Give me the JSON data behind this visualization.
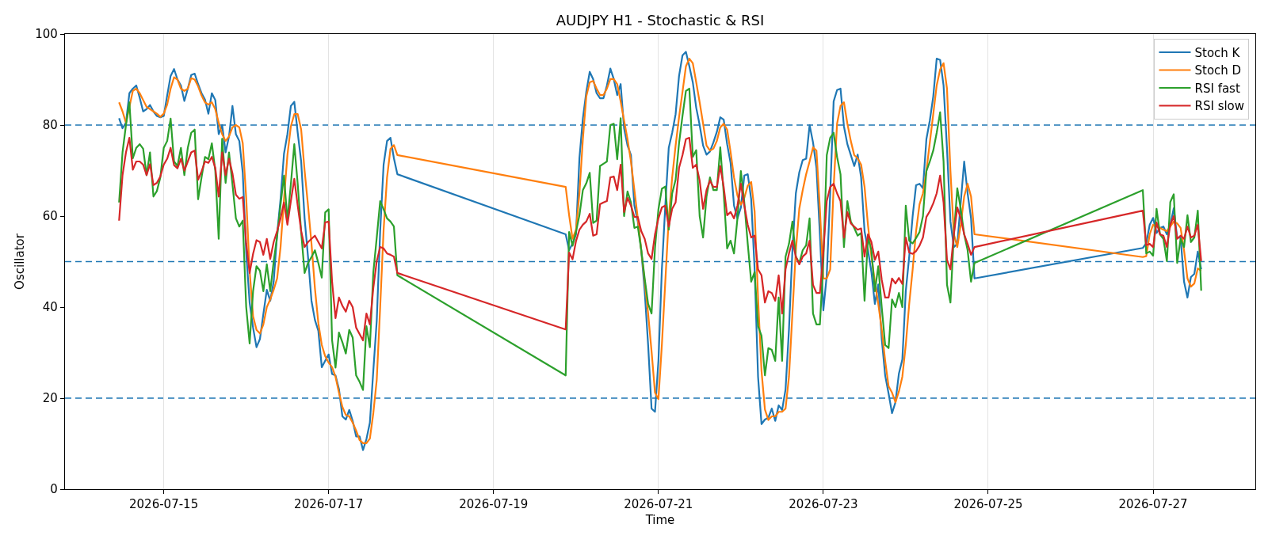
{
  "chart_data": {
    "type": "line",
    "title": "AUDJPY H1 - Stochastic & RSI",
    "xlabel": "Time",
    "ylabel": "Oscillator",
    "x": [
      "2026-07-14T11:00",
      "2026-07-14T12:00",
      "2026-07-14T13:00",
      "2026-07-14T14:00",
      "2026-07-14T15:00",
      "2026-07-14T16:00",
      "2026-07-14T17:00",
      "2026-07-14T18:00",
      "2026-07-14T19:00",
      "2026-07-14T20:00",
      "2026-07-14T21:00",
      "2026-07-14T22:00",
      "2026-07-14T23:00",
      "2026-07-15T00:00",
      "2026-07-15T01:00",
      "2026-07-15T02:00",
      "2026-07-15T03:00",
      "2026-07-15T04:00",
      "2026-07-15T05:00",
      "2026-07-15T06:00",
      "2026-07-15T07:00",
      "2026-07-15T08:00",
      "2026-07-15T09:00",
      "2026-07-15T10:00",
      "2026-07-15T11:00",
      "2026-07-15T12:00",
      "2026-07-15T13:00",
      "2026-07-15T14:00",
      "2026-07-15T15:00",
      "2026-07-15T16:00",
      "2026-07-15T17:00",
      "2026-07-15T18:00",
      "2026-07-15T19:00",
      "2026-07-15T20:00",
      "2026-07-15T21:00",
      "2026-07-15T22:00",
      "2026-07-15T23:00",
      "2026-07-16T00:00",
      "2026-07-16T01:00",
      "2026-07-16T02:00",
      "2026-07-16T03:00",
      "2026-07-16T04:00",
      "2026-07-16T05:00",
      "2026-07-16T06:00",
      "2026-07-16T07:00",
      "2026-07-16T08:00",
      "2026-07-16T09:00",
      "2026-07-16T10:00",
      "2026-07-16T11:00",
      "2026-07-16T12:00",
      "2026-07-16T13:00",
      "2026-07-16T14:00",
      "2026-07-16T15:00",
      "2026-07-16T16:00",
      "2026-07-16T17:00",
      "2026-07-16T18:00",
      "2026-07-16T19:00",
      "2026-07-16T20:00",
      "2026-07-16T21:00",
      "2026-07-16T22:00",
      "2026-07-16T23:00",
      "2026-07-17T00:00",
      "2026-07-17T01:00",
      "2026-07-17T02:00",
      "2026-07-17T03:00",
      "2026-07-17T04:00",
      "2026-07-17T05:00",
      "2026-07-17T06:00",
      "2026-07-17T07:00",
      "2026-07-17T08:00",
      "2026-07-17T09:00",
      "2026-07-17T10:00",
      "2026-07-17T11:00",
      "2026-07-17T12:00",
      "2026-07-17T13:00",
      "2026-07-17T14:00",
      "2026-07-17T15:00",
      "2026-07-17T16:00",
      "2026-07-17T17:00",
      "2026-07-17T18:00",
      "2026-07-17T19:00",
      "2026-07-17T20:00",
      "2026-07-19T21:00",
      "2026-07-19T22:00",
      "2026-07-19T23:00",
      "2026-07-20T00:00",
      "2026-07-20T01:00",
      "2026-07-20T02:00",
      "2026-07-20T03:00",
      "2026-07-20T04:00",
      "2026-07-20T05:00",
      "2026-07-20T06:00",
      "2026-07-20T07:00",
      "2026-07-20T08:00",
      "2026-07-20T09:00",
      "2026-07-20T10:00",
      "2026-07-20T11:00",
      "2026-07-20T12:00",
      "2026-07-20T13:00",
      "2026-07-20T14:00",
      "2026-07-20T15:00",
      "2026-07-20T16:00",
      "2026-07-20T17:00",
      "2026-07-20T18:00",
      "2026-07-20T19:00",
      "2026-07-20T20:00",
      "2026-07-20T21:00",
      "2026-07-20T22:00",
      "2026-07-20T23:00",
      "2026-07-21T00:00",
      "2026-07-21T01:00",
      "2026-07-21T02:00",
      "2026-07-21T03:00",
      "2026-07-21T04:00",
      "2026-07-21T05:00",
      "2026-07-21T06:00",
      "2026-07-21T07:00",
      "2026-07-21T08:00",
      "2026-07-21T09:00",
      "2026-07-21T10:00",
      "2026-07-21T11:00",
      "2026-07-21T12:00",
      "2026-07-21T13:00",
      "2026-07-21T14:00",
      "2026-07-21T15:00",
      "2026-07-21T16:00",
      "2026-07-21T17:00",
      "2026-07-21T18:00",
      "2026-07-21T19:00",
      "2026-07-21T20:00",
      "2026-07-21T21:00",
      "2026-07-21T22:00",
      "2026-07-21T23:00",
      "2026-07-22T00:00",
      "2026-07-22T01:00",
      "2026-07-22T02:00",
      "2026-07-22T03:00",
      "2026-07-22T04:00",
      "2026-07-22T05:00",
      "2026-07-22T06:00",
      "2026-07-22T07:00",
      "2026-07-22T08:00",
      "2026-07-22T09:00",
      "2026-07-22T10:00",
      "2026-07-22T11:00",
      "2026-07-22T12:00",
      "2026-07-22T13:00",
      "2026-07-22T14:00",
      "2026-07-22T15:00",
      "2026-07-22T16:00",
      "2026-07-22T17:00",
      "2026-07-22T18:00",
      "2026-07-22T19:00",
      "2026-07-22T20:00",
      "2026-07-22T21:00",
      "2026-07-22T22:00",
      "2026-07-22T23:00",
      "2026-07-23T00:00",
      "2026-07-23T01:00",
      "2026-07-23T02:00",
      "2026-07-23T03:00",
      "2026-07-23T04:00",
      "2026-07-23T05:00",
      "2026-07-23T06:00",
      "2026-07-23T07:00",
      "2026-07-23T08:00",
      "2026-07-23T09:00",
      "2026-07-23T10:00",
      "2026-07-23T11:00",
      "2026-07-23T12:00",
      "2026-07-23T13:00",
      "2026-07-23T14:00",
      "2026-07-23T15:00",
      "2026-07-23T16:00",
      "2026-07-23T17:00",
      "2026-07-23T18:00",
      "2026-07-23T19:00",
      "2026-07-23T20:00",
      "2026-07-23T21:00",
      "2026-07-23T22:00",
      "2026-07-23T23:00",
      "2026-07-24T00:00",
      "2026-07-24T01:00",
      "2026-07-24T02:00",
      "2026-07-24T03:00",
      "2026-07-24T04:00",
      "2026-07-24T05:00",
      "2026-07-24T06:00",
      "2026-07-24T07:00",
      "2026-07-24T08:00",
      "2026-07-24T09:00",
      "2026-07-24T10:00",
      "2026-07-24T11:00",
      "2026-07-24T12:00",
      "2026-07-24T13:00",
      "2026-07-24T14:00",
      "2026-07-24T15:00",
      "2026-07-24T16:00",
      "2026-07-24T17:00",
      "2026-07-24T18:00",
      "2026-07-24T19:00",
      "2026-07-24T20:00",
      "2026-07-26T21:00",
      "2026-07-26T22:00",
      "2026-07-26T23:00",
      "2026-07-27T00:00",
      "2026-07-27T01:00",
      "2026-07-27T02:00",
      "2026-07-27T03:00",
      "2026-07-27T04:00",
      "2026-07-27T05:00",
      "2026-07-27T06:00",
      "2026-07-27T07:00",
      "2026-07-27T08:00",
      "2026-07-27T09:00",
      "2026-07-27T10:00",
      "2026-07-27T11:00",
      "2026-07-27T12:00",
      "2026-07-27T13:00",
      "2026-07-27T14:00"
    ],
    "series": [
      {
        "name": "Stoch K",
        "color": "#1f77b4",
        "values": [
          81.5,
          79.3,
          80.5,
          87,
          88,
          88.7,
          86,
          83,
          83.5,
          84.4,
          83,
          82,
          81.7,
          82,
          86.5,
          90.8,
          92.3,
          90,
          88.7,
          85.3,
          88,
          91,
          91.3,
          89,
          87,
          85.6,
          82.5,
          87,
          85.5,
          78,
          80,
          74,
          77.5,
          84.2,
          78,
          76.5,
          69.5,
          52,
          41,
          35.5,
          31.2,
          33,
          38.5,
          43.8,
          41.4,
          45.6,
          56,
          63.7,
          73.7,
          78,
          84.2,
          85.1,
          78.3,
          72,
          59.5,
          51,
          41.4,
          37.2,
          34.8,
          26.8,
          28.2,
          29.6,
          25.3,
          25,
          22,
          16,
          15.3,
          17.4,
          15,
          11.6,
          11.6,
          8.6,
          11,
          14.6,
          26,
          37,
          56.7,
          71.3,
          76.5,
          77.2,
          72.7,
          69.2,
          56,
          52.5,
          54,
          56,
          72.7,
          81.4,
          87.3,
          91.7,
          90.1,
          87,
          85.9,
          85.9,
          88.7,
          92.4,
          90.1,
          86.6,
          89,
          79.3,
          75.5,
          73.4,
          62.3,
          58.8,
          52.5,
          43.5,
          31.7,
          17.7,
          17,
          28.2,
          48.3,
          62.3,
          75,
          78.3,
          82.4,
          90.8,
          95.3,
          96.1,
          92.9,
          89.4,
          83.8,
          80,
          75.5,
          73.5,
          74.2,
          76.2,
          78.5,
          81.7,
          81.2,
          75.8,
          71.7,
          62.3,
          59.5,
          61.9,
          68.9,
          69.2,
          63.7,
          48.3,
          24.7,
          14.3,
          15.3,
          15.7,
          17.7,
          15,
          18.4,
          17.4,
          21.9,
          35.1,
          52.5,
          65,
          69.6,
          72.3,
          72.6,
          80,
          76.2,
          70.6,
          56,
          39.3,
          47,
          65,
          85.2,
          87.7,
          88,
          79.7,
          75.8,
          73.4,
          71,
          73.5,
          68.5,
          56.7,
          52.5,
          47.7,
          40.7,
          45,
          33,
          25,
          21,
          16.7,
          19.1,
          25.4,
          28.5,
          43.5,
          51.1,
          60,
          66.8,
          67.1,
          66.1,
          76.9,
          81,
          86.3,
          94.6,
          94.3,
          88.7,
          74.8,
          58.8,
          53.2,
          53.9,
          63,
          72,
          65,
          59.5,
          46.3,
          53,
          54,
          58.1,
          59.6,
          56.3,
          57.4,
          57.7,
          56,
          58.1,
          61.7,
          55.3,
          55.3,
          45.6,
          42.1,
          46.6,
          47.3,
          52.2,
          48.3
        ]
      },
      {
        "name": "Stoch D",
        "color": "#ff7f0e",
        "values": [
          85,
          83,
          80.5,
          84,
          87.5,
          88,
          87,
          85.5,
          84,
          83.5,
          83,
          82.5,
          81.8,
          82.5,
          84.5,
          88,
          90.5,
          90,
          88,
          87.5,
          88,
          90.3,
          90,
          88.5,
          86.5,
          85,
          84.5,
          85,
          83.5,
          80.5,
          78,
          76.5,
          77.5,
          79.5,
          80,
          79.5,
          76,
          64,
          48,
          38,
          35,
          34.2,
          36.2,
          40,
          41.7,
          43.8,
          46.3,
          53.2,
          63.7,
          73.4,
          79.7,
          82.4,
          82.4,
          79,
          70,
          62.3,
          54,
          44.2,
          36.5,
          31.7,
          29.2,
          27.8,
          26.8,
          24.7,
          21.2,
          18.1,
          16.3,
          16,
          14.6,
          12.9,
          10.8,
          10.1,
          10.1,
          11.1,
          16.7,
          24,
          40,
          57,
          68.5,
          74.8,
          75.6,
          73.4,
          66.4,
          60.2,
          55,
          57,
          65,
          76.9,
          86.3,
          89.4,
          89.7,
          88,
          86.6,
          86.6,
          88,
          90.1,
          90.1,
          89,
          85.2,
          81,
          76.9,
          72,
          65.7,
          59.5,
          52.5,
          45.6,
          38.6,
          30.3,
          21.2,
          19.8,
          31.7,
          45.6,
          59.5,
          68.5,
          75.5,
          81.7,
          87.3,
          92.9,
          94.6,
          93.6,
          89.4,
          85,
          80.3,
          75.5,
          74.4,
          74.8,
          76.5,
          79.5,
          80.3,
          79,
          74.1,
          68.5,
          64.5,
          62.5,
          64,
          66.7,
          67.5,
          61,
          42,
          26,
          17.5,
          15.2,
          16,
          16,
          17,
          17,
          17.7,
          24.7,
          38.6,
          52.5,
          61.6,
          65.7,
          69.2,
          72,
          75.1,
          74.4,
          61.6,
          46.3,
          46.3,
          48.3,
          66.4,
          80.3,
          84.2,
          85,
          80.3,
          76.5,
          73.4,
          72.7,
          71.3,
          66.4,
          58,
          51.1,
          45.6,
          40.7,
          35.1,
          28.2,
          22.6,
          21.2,
          19.1,
          21.5,
          24.7,
          31.7,
          40.7,
          48.3,
          56.7,
          62.6,
          65,
          69.9,
          76.2,
          82.4,
          88.7,
          92.2,
          93.6,
          88,
          69.9,
          56,
          53.2,
          58.1,
          64.3,
          67.1,
          64.3,
          56,
          51,
          51.2,
          56,
          58.1,
          57.7,
          57.4,
          57,
          56.7,
          57.7,
          58.8,
          58.4,
          57.4,
          52.5,
          46.3,
          44.5,
          45.2,
          48.5,
          48
        ]
      },
      {
        "name": "RSI fast",
        "color": "#2ca02c",
        "values": [
          63,
          74,
          80,
          85,
          72.7,
          75,
          75.8,
          74.8,
          69,
          74,
          64.3,
          65.5,
          68.5,
          75,
          76.5,
          81.4,
          72,
          71,
          75,
          69,
          75,
          78.3,
          79,
          63.7,
          68.5,
          73,
          72.5,
          76,
          70,
          55,
          77,
          67.3,
          74,
          67,
          59.5,
          57.7,
          59,
          40,
          32,
          43.5,
          49,
          48,
          43.5,
          49.4,
          43.5,
          50,
          55.5,
          62.5,
          68.9,
          59,
          67,
          75.8,
          67,
          56.5,
          47.5,
          49.7,
          51,
          52.5,
          49.7,
          46.5,
          60.8,
          61.5,
          32.7,
          26.7,
          34.4,
          32.3,
          29.8,
          35,
          33.3,
          25,
          23.6,
          21.8,
          35.8,
          31.2,
          47.6,
          55.3,
          63.3,
          61.5,
          59.5,
          58.8,
          57.7,
          47,
          25,
          56.5,
          53.5,
          56.5,
          60.2,
          65.7,
          67.2,
          69.5,
          58.5,
          59,
          71,
          71.5,
          72,
          80,
          80.3,
          72.5,
          81.5,
          60,
          65.4,
          63,
          57.4,
          57.7,
          52.5,
          46.3,
          40.7,
          38.6,
          53,
          61.5,
          66,
          66.5,
          57,
          65,
          68,
          76,
          82,
          87.5,
          88,
          73,
          74.5,
          60,
          55.3,
          64.3,
          68.5,
          65.7,
          65.7,
          75.1,
          65,
          52.9,
          54.6,
          51.8,
          59.5,
          69.9,
          63,
          53.9,
          45.6,
          47.7,
          35.8,
          33.7,
          25,
          31,
          30.6,
          28.2,
          42.1,
          28.2,
          51.1,
          53.9,
          58.8,
          51.1,
          49.7,
          52.5,
          53.6,
          59.5,
          38.6,
          36.2,
          36.2,
          50,
          73.4,
          77.2,
          78.3,
          73,
          69.2,
          53.2,
          63.3,
          58.8,
          57.4,
          55.7,
          56.3,
          41.4,
          55.3,
          52.5,
          43.5,
          49,
          40,
          31.7,
          31,
          41.7,
          40,
          43.1,
          40,
          62.3,
          54.6,
          54,
          55.2,
          56.5,
          60,
          69.9,
          72,
          74.4,
          78.3,
          82.8,
          72,
          44.9,
          41,
          56,
          66.1,
          61.6,
          56,
          52.5,
          45.6,
          49.7,
          65.7,
          51.8,
          52.2,
          51.3,
          61.6,
          56,
          55,
          50.1,
          63.1,
          64.8,
          49.7,
          55,
          53.2,
          60.2,
          54.3,
          55.3,
          61.2,
          43.6
        ]
      },
      {
        "name": "RSI slow",
        "color": "#d62728",
        "values": [
          59,
          69,
          74,
          77.2,
          70.2,
          72,
          72,
          71.3,
          69,
          71.4,
          66.8,
          67.3,
          68.7,
          71.3,
          72.6,
          75,
          71.2,
          70.5,
          72.6,
          70,
          72,
          74,
          74.4,
          68,
          69.8,
          72,
          71.7,
          73,
          70.6,
          64.3,
          74,
          69,
          72.6,
          69.4,
          64.7,
          63.8,
          64.2,
          54,
          47.5,
          51.7,
          54.7,
          54.3,
          51.5,
          55,
          50.6,
          54.3,
          56.7,
          59.5,
          63,
          58.1,
          63.3,
          68.2,
          62.3,
          56.7,
          53.2,
          54.3,
          55,
          55.7,
          54.3,
          52.9,
          58.6,
          58.8,
          45.6,
          37.6,
          42.1,
          40.3,
          39,
          41.4,
          40,
          35.5,
          34.1,
          32.7,
          38.6,
          36.2,
          44.2,
          50.1,
          53.2,
          52.9,
          51.8,
          51.5,
          51.1,
          47.5,
          35.1,
          52,
          50.5,
          54.5,
          57,
          58.1,
          58.8,
          60.5,
          55.7,
          56,
          62.6,
          63,
          63.3,
          68.5,
          68.7,
          65.7,
          71.3,
          60.9,
          64,
          62.3,
          59.8,
          59.8,
          56.7,
          55,
          51.8,
          50.6,
          56,
          59.5,
          61.9,
          62.3,
          57.7,
          61.6,
          63,
          70.6,
          73.4,
          76.9,
          77.2,
          70.6,
          71.3,
          67.8,
          61.6,
          65.7,
          67.8,
          66.4,
          66.4,
          71,
          66.4,
          60.2,
          60.9,
          59.5,
          62.3,
          67.1,
          62.3,
          58.1,
          55.3,
          55.7,
          48.3,
          47,
          41,
          43.5,
          43.1,
          41.4,
          47,
          38.6,
          48.3,
          51.8,
          54.6,
          51.1,
          49.4,
          51.1,
          51.8,
          54.6,
          44.9,
          43.1,
          43.1,
          52,
          63.3,
          66.4,
          67.1,
          65,
          63.3,
          55.3,
          60.9,
          58.4,
          57.7,
          57,
          57.3,
          51.1,
          56,
          54.3,
          50.4,
          52.2,
          46,
          42.1,
          42.1,
          46.3,
          45.2,
          46.4,
          45.1,
          55.3,
          52,
          51.7,
          52.3,
          53.5,
          55.3,
          59.8,
          61.1,
          62.8,
          65,
          68.9,
          63,
          50.4,
          48.3,
          56,
          61.9,
          59.5,
          56,
          53.9,
          51.5,
          53.2,
          61.2,
          53.6,
          53.9,
          53.2,
          58.6,
          56,
          55.7,
          53.2,
          58.1,
          60,
          55,
          55.7,
          55,
          57.7,
          55.3,
          55.7,
          58.1,
          50.1
        ]
      }
    ],
    "xlim": [
      "2026-07-13T19:15",
      "2026-07-28T05:45"
    ],
    "xticks": [
      "2026-07-15",
      "2026-07-17",
      "2026-07-19",
      "2026-07-21",
      "2026-07-23",
      "2026-07-25",
      "2026-07-27"
    ],
    "ylim": [
      0,
      100
    ],
    "yticks": [
      0,
      20,
      40,
      60,
      80,
      100
    ],
    "grid": true,
    "legend": "top right",
    "ref_lines": [
      {
        "axis": "y",
        "value": 80,
        "color": "#1f77b4",
        "line_style": "dashed"
      },
      {
        "axis": "y",
        "value": 50,
        "color": "#1f77b4",
        "line_style": "dashed"
      },
      {
        "axis": "y",
        "value": 20,
        "color": "#1f77b4",
        "line_style": "dashed"
      }
    ]
  }
}
